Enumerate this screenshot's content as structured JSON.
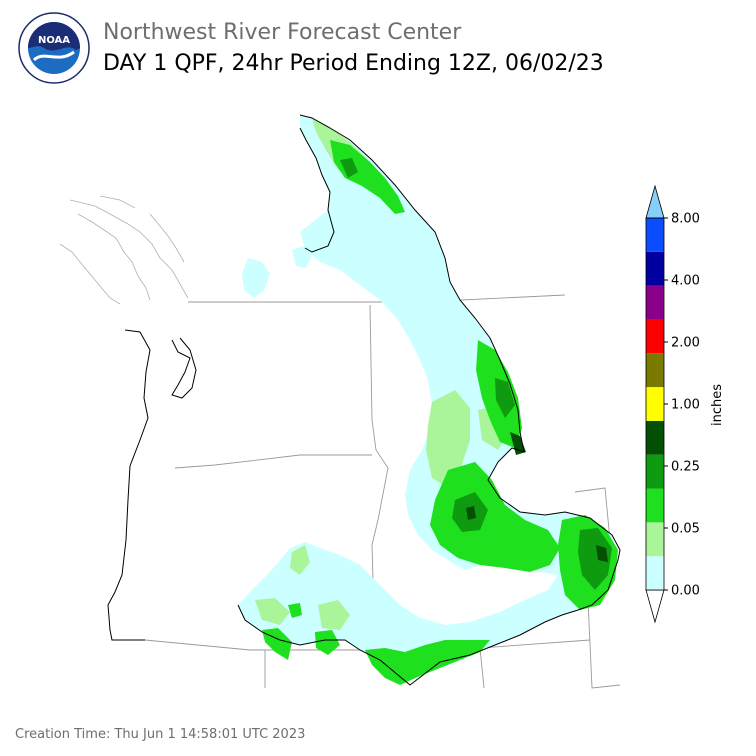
{
  "header": {
    "title": "Northwest River Forecast Center",
    "subtitle": "DAY 1 QPF, 24hr Period Ending 12Z, 06/02/23"
  },
  "logo": {
    "text": "NOAA",
    "ring_text": "NATIONAL OCEANIC AND ATMOSPHERIC ADMINISTRATION · U.S. DEPARTMENT OF COMMERCE"
  },
  "colorbar": {
    "label": "inches",
    "ticks": [
      "8.00",
      "4.00",
      "2.00",
      "1.00",
      "0.25",
      "0.05",
      "0.00"
    ],
    "colors": [
      "#ffffff",
      "#ccffff",
      "#aaf59a",
      "#1ee01e",
      "#0f9b0f",
      "#034f03",
      "#ffff00",
      "#7a7a00",
      "#ff0000",
      "#8b008b",
      "#0000a0",
      "#0a4dff",
      "#87cefa"
    ]
  },
  "footer": {
    "creation_time": "Creation Time: Thu Jun 1 14:58:01 UTC 2023"
  }
}
